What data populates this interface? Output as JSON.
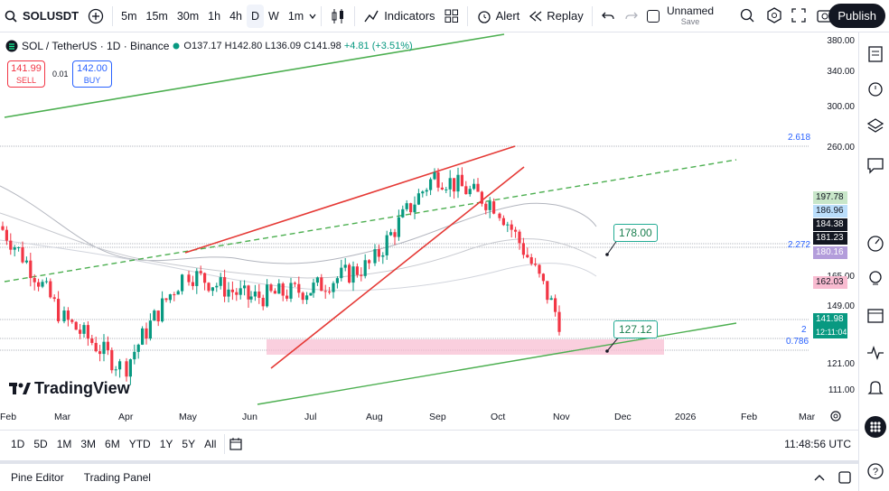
{
  "toolbar": {
    "symbol": "SOLUSDT",
    "intervals": [
      "5m",
      "15m",
      "30m",
      "1h",
      "4h",
      "D",
      "W",
      "1m"
    ],
    "active_interval": "D",
    "indicators_label": "Indicators",
    "alert_label": "Alert",
    "replay_label": "Replay",
    "layout_name": "Unnamed",
    "layout_status": "Save",
    "publish_label": "Publish"
  },
  "legend": {
    "title": "SOL / TetherUS · 1D · Binance",
    "open": "O137.17",
    "high": "H142.80",
    "low": "L136.09",
    "close": "C141.98",
    "change": "+4.81 (+3.51%)",
    "sell_price": "141.99",
    "sell_label": "SELL",
    "spread": "0.01",
    "buy_price": "142.00",
    "buy_label": "BUY"
  },
  "price_axis": {
    "labels": [
      "380.00",
      "340.00",
      "300.00",
      "260.00",
      "165.00",
      "149.00",
      "121.00",
      "111.00"
    ],
    "tags": [
      {
        "value": "197.78",
        "color": "#c8e6c9"
      },
      {
        "value": "186.96",
        "color": "#bbdefb"
      },
      {
        "value": "184.38",
        "color": "#131722"
      },
      {
        "value": "181.23",
        "color": "#131722"
      },
      {
        "value": "180.16",
        "color": "#b39ddb"
      },
      {
        "value": "162.03",
        "color": "#f8bbd0"
      },
      {
        "value": "141.98",
        "color": "#089981"
      },
      {
        "value": "12:11:04",
        "color": "#089981"
      }
    ]
  },
  "fib": {
    "f2618": "2.618",
    "f2272": "2.272",
    "f2": "2",
    "f0786": "0.786"
  },
  "callouts": {
    "upper": "178.00",
    "lower": "127.12"
  },
  "time_axis": [
    "Feb",
    "Mar",
    "Apr",
    "May",
    "Jun",
    "Jul",
    "Aug",
    "Sep",
    "Oct",
    "Nov",
    "Dec",
    "2026",
    "Feb",
    "Mar"
  ],
  "bottom": {
    "ranges": [
      "1D",
      "5D",
      "1M",
      "3M",
      "6M",
      "YTD",
      "1Y",
      "5Y",
      "All"
    ],
    "clock": "11:48:56 UTC"
  },
  "footer": {
    "pine_editor": "Pine Editor",
    "trading_panel": "Trading Panel"
  },
  "brand": "TradingView",
  "chart_data": {
    "type": "candlestick",
    "title": "SOL / TetherUS · 1D · Binance",
    "ylim": [
      105,
      385
    ],
    "approx_close_path": [
      {
        "month": "Feb",
        "value": 200
      },
      {
        "month": "Mar",
        "value": 145
      },
      {
        "month": "Apr",
        "value": 120
      },
      {
        "month": "May",
        "value": 170
      },
      {
        "month": "Jun",
        "value": 155
      },
      {
        "month": "Jul",
        "value": 160
      },
      {
        "month": "Aug",
        "value": 175
      },
      {
        "month": "Sep",
        "value": 240
      },
      {
        "month": "Oct",
        "value": 215
      },
      {
        "month": "Nov",
        "value": 141.98
      }
    ]
  }
}
